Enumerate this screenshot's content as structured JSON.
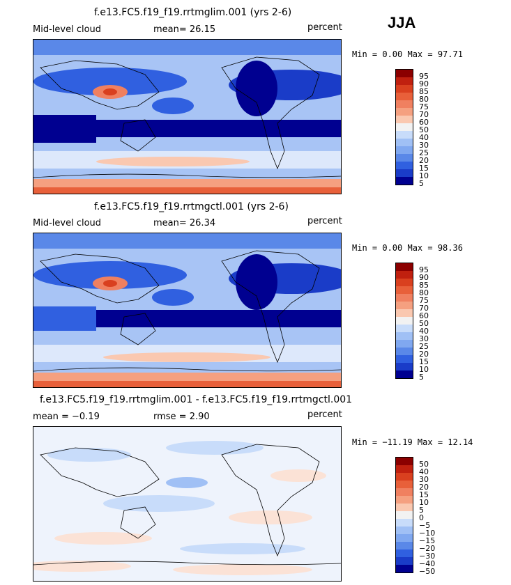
{
  "season": "JJA",
  "panels": [
    {
      "title": "f.e13.FC5.f19_f19.rrtmglim.001 (yrs 2-6)",
      "field": "Mid-level cloud",
      "stat1": "mean=  26.15",
      "stat2": "",
      "units": "percent",
      "minmax": "Min =   0.00 Max =  97.71",
      "levels": [
        "95",
        "90",
        "85",
        "80",
        "75",
        "70",
        "60",
        "50",
        "40",
        "30",
        "25",
        "20",
        "15",
        "10",
        "5"
      ],
      "type": "field"
    },
    {
      "title": "f.e13.FC5.f19_f19.rrtmgctl.001 (yrs 2-6)",
      "field": "Mid-level cloud",
      "stat1": "mean=  26.34",
      "stat2": "",
      "units": "percent",
      "minmax": "Min =   0.00 Max =  98.36",
      "levels": [
        "95",
        "90",
        "85",
        "80",
        "75",
        "70",
        "60",
        "50",
        "40",
        "30",
        "25",
        "20",
        "15",
        "10",
        "5"
      ],
      "type": "field"
    },
    {
      "title": "f.e13.FC5.f19_f19.rrtmglim.001 - f.e13.FC5.f19_f19.rrtmgctl.001",
      "field": "mean =  −0.19",
      "stat1": "rmse =   2.90",
      "stat2": "",
      "units": "percent",
      "minmax": "Min = −11.19 Max =  12.14",
      "levels": [
        "50",
        "40",
        "30",
        "20",
        "15",
        "10",
        "5",
        "0",
        "−5",
        "−10",
        "−15",
        "−20",
        "−30",
        "−40",
        "−50"
      ],
      "type": "diff"
    }
  ],
  "colors": {
    "scale": [
      "#8b0000",
      "#c0200f",
      "#d9401f",
      "#e8603a",
      "#f08060",
      "#f5a080",
      "#fac8b0",
      "#f2f2f2",
      "#c8dcfa",
      "#a0c0f5",
      "#80a8f0",
      "#5a88e8",
      "#3060e0",
      "#1a3cc8",
      "#000090"
    ]
  }
}
